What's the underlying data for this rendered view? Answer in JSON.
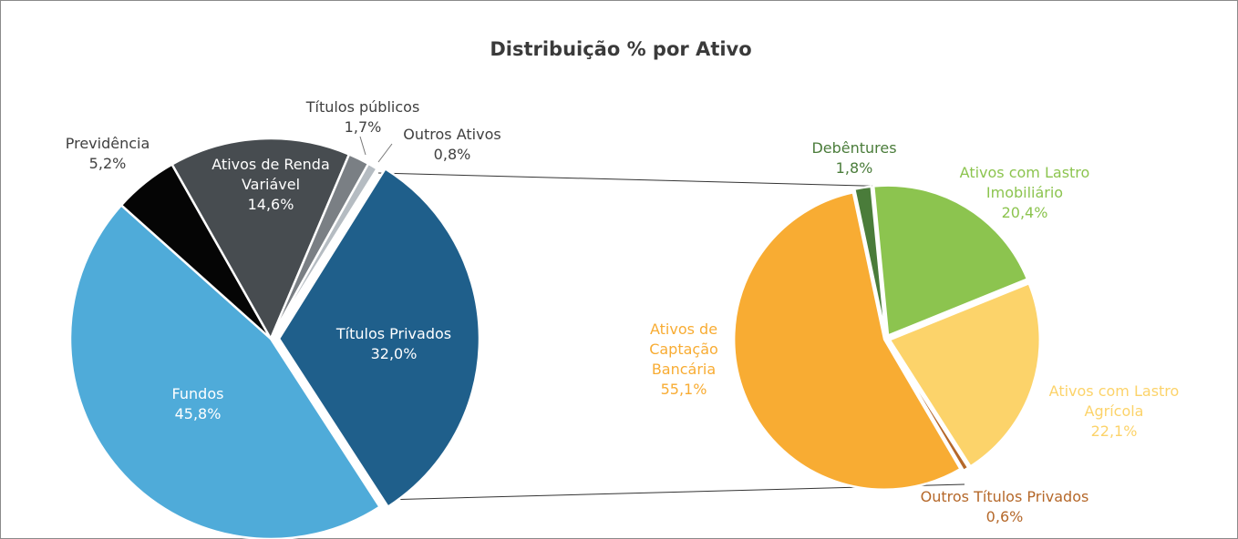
{
  "chart_data": [
    {
      "type": "pie",
      "title": "Distribuição % por Ativo",
      "categories": [
        "Títulos Privados",
        "Fundos",
        "Previdência",
        "Ativos de Renda Variável",
        "Títulos públicos",
        "Outros Ativos"
      ],
      "values": [
        32.0,
        45.8,
        5.2,
        14.6,
        1.7,
        0.8
      ],
      "value_labels": [
        "32,0%",
        "45,8%",
        "5,2%",
        "14,6%",
        "1,7%",
        "0,8%"
      ],
      "colors": [
        "#1f5f8b",
        "#4fabd9",
        "#050505",
        "#474c50",
        "#7a7f84",
        "#b5bcc2"
      ]
    },
    {
      "type": "pie",
      "categories": [
        "Debêntures",
        "Ativos com Lastro Imobiliário",
        "Ativos com Lastro Agrícola",
        "Outros Títulos Privados",
        "Ativos de Captação Bancária"
      ],
      "values": [
        1.8,
        20.4,
        22.1,
        0.6,
        55.1
      ],
      "value_labels": [
        "1,8%",
        "20,4%",
        "22,1%",
        "0,6%",
        "55,1%"
      ],
      "colors": [
        "#4a7c3a",
        "#8cc44f",
        "#fcd36a",
        "#b5682a",
        "#f8ac33"
      ]
    }
  ]
}
